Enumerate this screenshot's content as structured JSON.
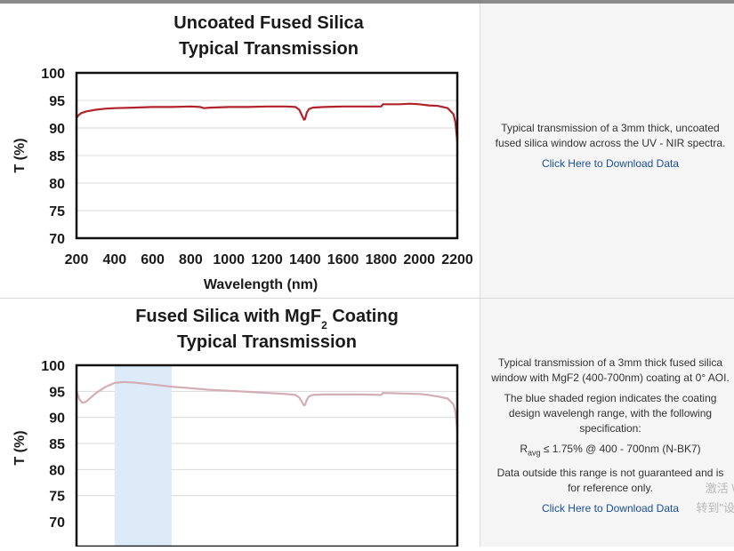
{
  "chart_data": [
    {
      "type": "line",
      "title_line1": "Uncoated Fused Silica",
      "title_line2": "Typical Transmission",
      "xlabel": "Wavelength (nm)",
      "ylabel": "T (%)",
      "xlim": [
        200,
        2200
      ],
      "ylim": [
        70,
        100
      ],
      "xticks": [
        "200",
        "400",
        "600",
        "800",
        "1000",
        "1200",
        "1400",
        "1600",
        "1800",
        "2000",
        "2200"
      ],
      "yticks": [
        "100",
        "95",
        "90",
        "85",
        "80",
        "75",
        "70"
      ],
      "grid": true,
      "color": "#b0232a",
      "series": [
        {
          "x": [
            200,
            210,
            225,
            250,
            300,
            350,
            400,
            500,
            600,
            700,
            800,
            850,
            870,
            900,
            1000,
            1100,
            1200,
            1300,
            1350,
            1370,
            1385,
            1395,
            1400,
            1410,
            1420,
            1440,
            1500,
            1600,
            1700,
            1800,
            1810,
            1900,
            1950,
            2000,
            2050,
            2100,
            2150,
            2180,
            2190,
            2200
          ],
          "y": [
            91.8,
            92.3,
            92.7,
            93.0,
            93.3,
            93.5,
            93.6,
            93.7,
            93.8,
            93.8,
            93.9,
            93.8,
            93.6,
            93.7,
            93.8,
            93.8,
            93.9,
            93.9,
            93.8,
            93.3,
            92.2,
            91.5,
            91.6,
            92.8,
            93.4,
            93.7,
            93.8,
            93.9,
            93.9,
            93.9,
            94.3,
            94.3,
            94.4,
            94.3,
            94.1,
            94.0,
            93.6,
            92.5,
            91.0,
            87.5
          ]
        }
      ]
    },
    {
      "type": "line",
      "title_main": "Fused Silica with MgF",
      "title_sub": "2",
      "title_tail": " Coating",
      "title_line2": "Typical Transmission",
      "ylabel": "T (%)",
      "xlim": [
        200,
        2200
      ],
      "ylim": [
        70,
        100
      ],
      "yticks": [
        "100",
        "95",
        "90",
        "85",
        "80",
        "75",
        "70"
      ],
      "shaded_range": [
        400,
        700
      ],
      "shade_color": "#dcebf7",
      "grid": true,
      "color": "#d3aeb4",
      "series": [
        {
          "x": [
            200,
            215,
            230,
            250,
            275,
            300,
            350,
            400,
            450,
            500,
            550,
            600,
            700,
            800,
            900,
            1000,
            1100,
            1200,
            1300,
            1350,
            1370,
            1385,
            1395,
            1400,
            1410,
            1420,
            1440,
            1500,
            1600,
            1700,
            1800,
            1810,
            1900,
            2000,
            2050,
            2100,
            2150,
            2180,
            2190,
            2200
          ],
          "y": [
            95.0,
            93.5,
            92.8,
            93.0,
            93.8,
            94.6,
            95.8,
            96.6,
            96.8,
            96.7,
            96.5,
            96.3,
            95.9,
            95.6,
            95.3,
            95.1,
            94.9,
            94.7,
            94.5,
            94.3,
            93.8,
            92.9,
            92.3,
            92.4,
            93.4,
            94.0,
            94.3,
            94.4,
            94.4,
            94.4,
            94.3,
            94.7,
            94.6,
            94.5,
            94.3,
            94.0,
            93.6,
            92.5,
            91.0,
            87.5
          ]
        }
      ]
    }
  ],
  "panel1": {
    "description": "Typical transmission of a 3mm thick, uncoated fused silica window across the UV - NIR spectra.",
    "link": "Click Here to Download Data"
  },
  "panel2": {
    "para1": "Typical transmission of a 3mm thick fused silica window with MgF2 (400-700nm) coating at 0° AOI.",
    "para2": "The blue shaded region indicates the coating design wavelengh range, with the following specification:",
    "spec_r": "R",
    "spec_sub": "avg",
    "spec_rest": " ≤ 1.75% @ 400 - 700nm (N-BK7)",
    "para3": "Data outside this range is not guaranteed and is for reference only.",
    "link": "Click Here to Download Data"
  },
  "watermark": {
    "line1": "激活 \\",
    "line2": "转到\"设"
  }
}
